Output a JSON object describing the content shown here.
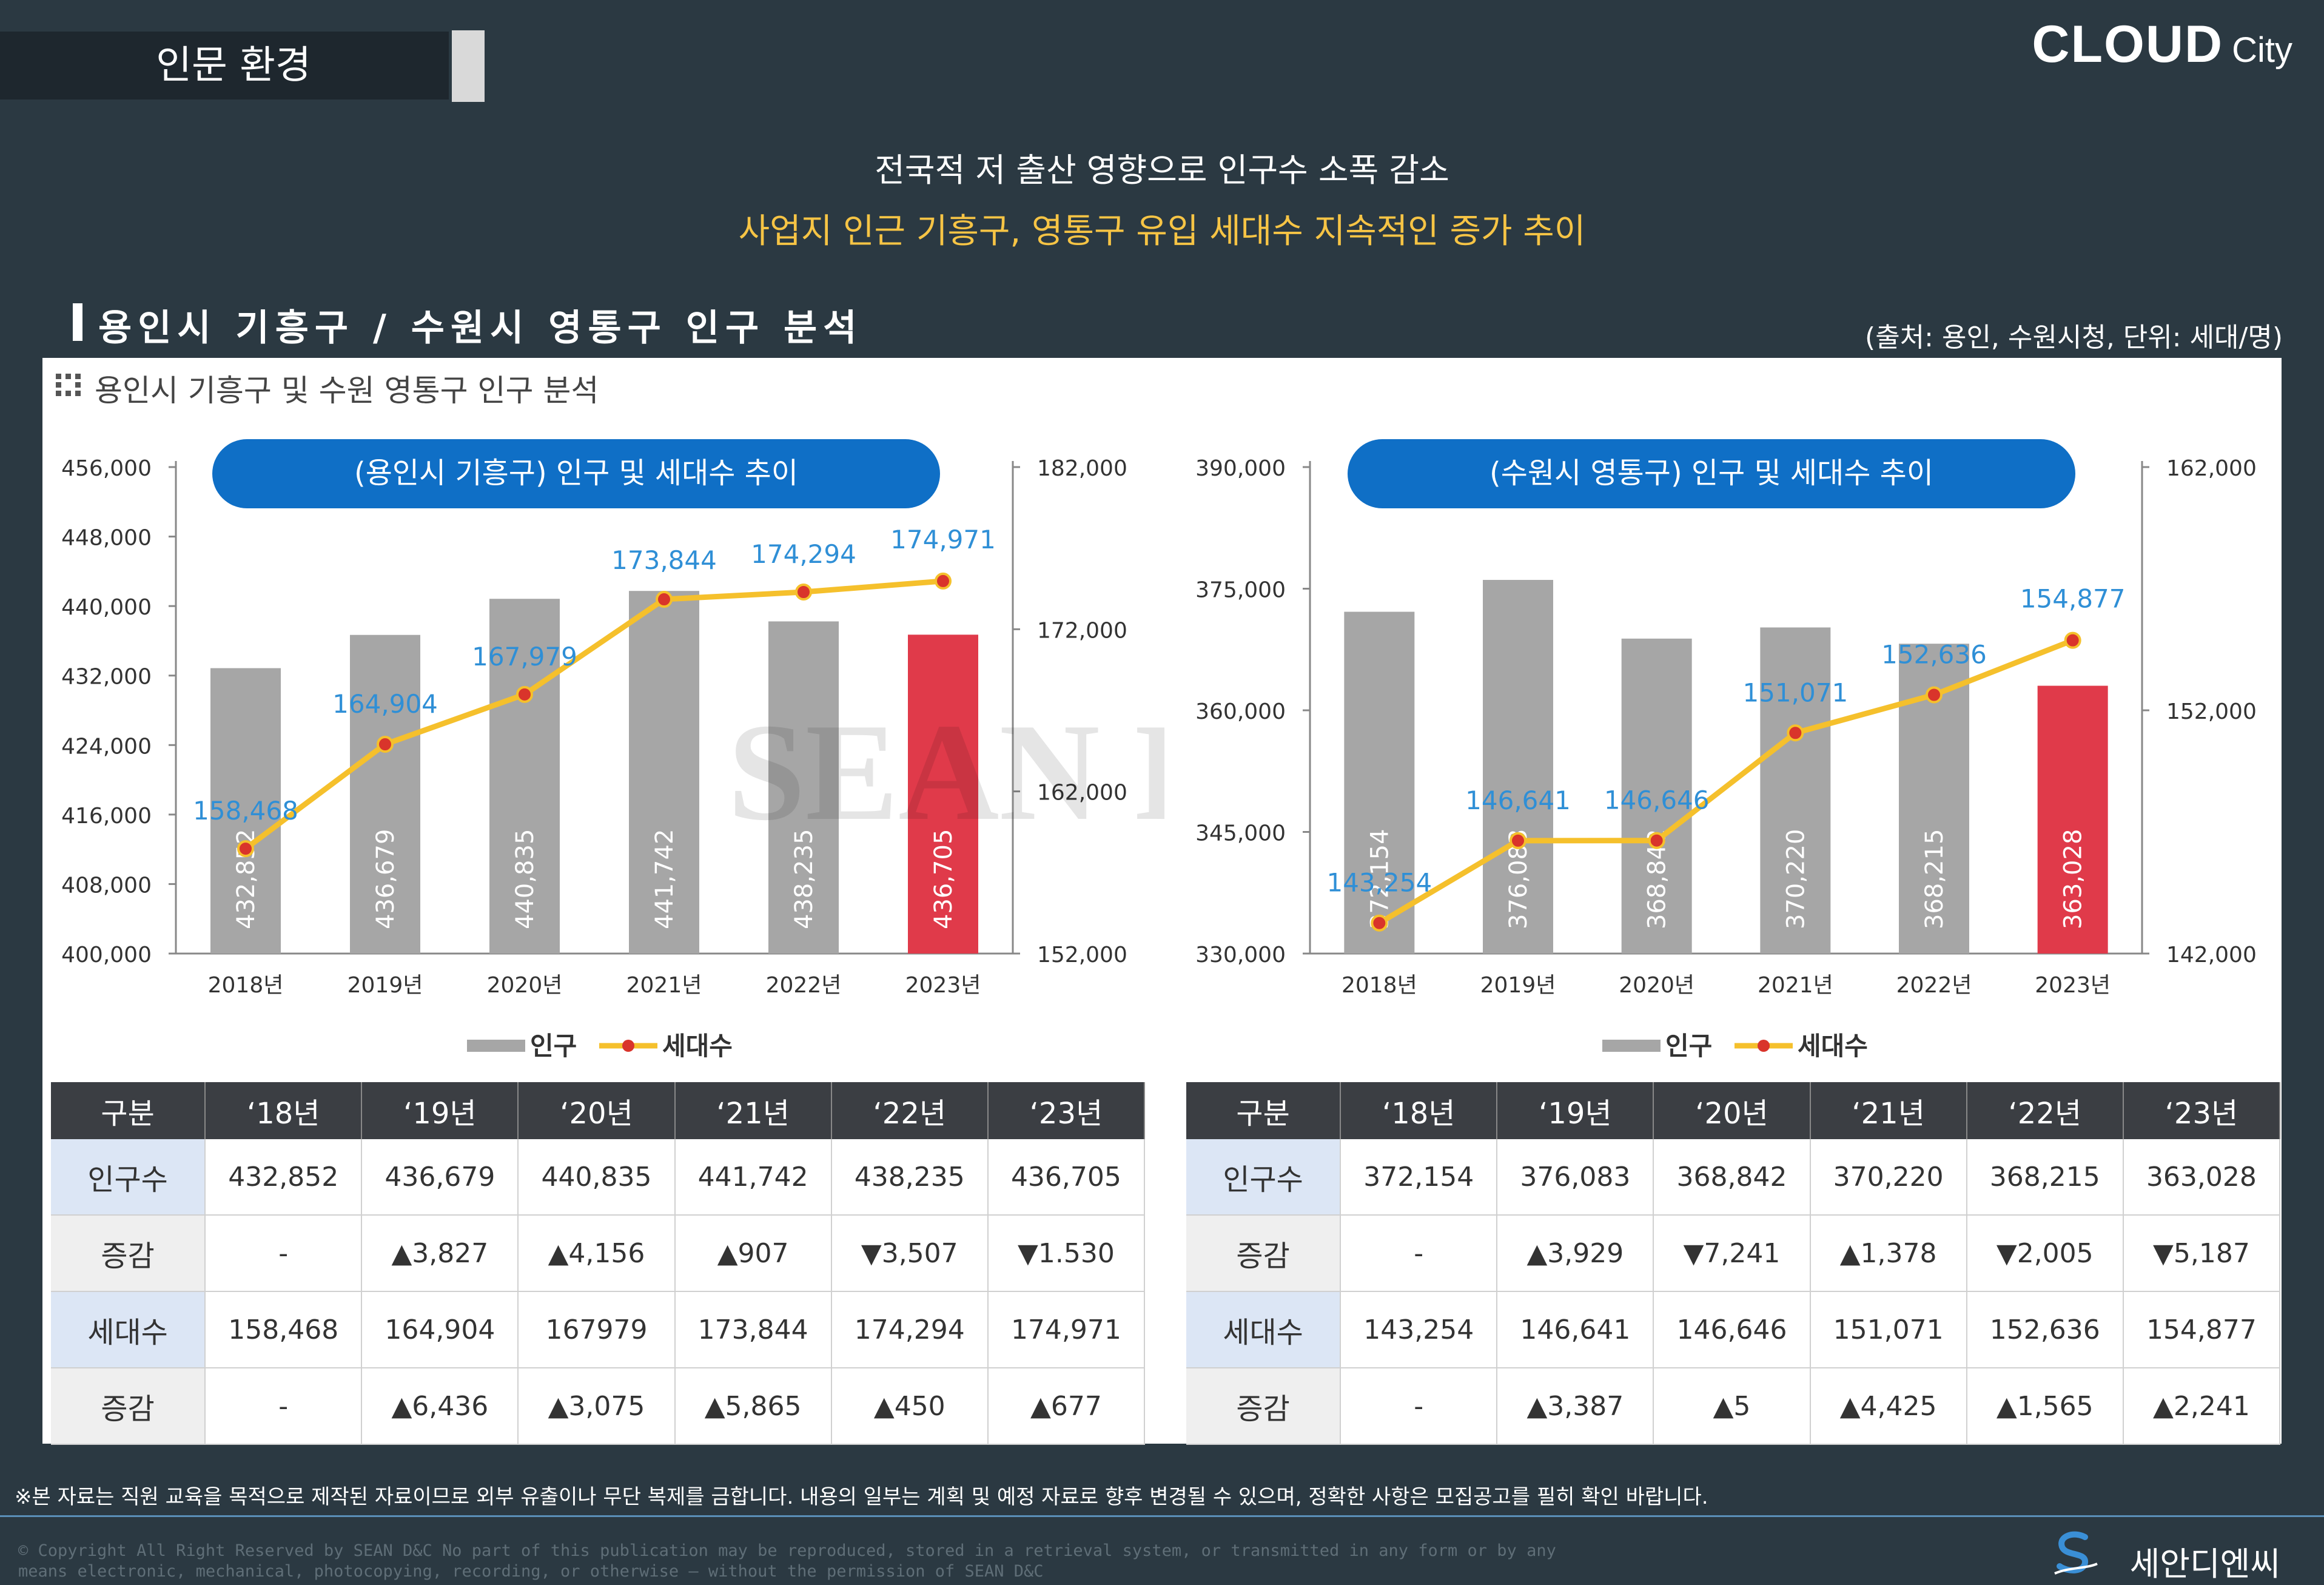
{
  "header": {
    "section_tab": "인문 환경",
    "brand_main": "CLOUD",
    "brand_sub": "City",
    "headline_1": "전국적 저 출산 영향으로 인구수 소폭 감소",
    "headline_2": "사업지 인근 기흥구, 영통구 유입 세대수 지속적인 증가 추이",
    "analysis_title": "용인시 기흥구 / 수원시 영통구 인구 분석",
    "source_note": "(출처: 용인, 수원시청, 단위: 세대/명)"
  },
  "panel": {
    "title": "용인시 기흥구 및 수원 영통구 인구 분석"
  },
  "watermark": "SEAN D&C",
  "colors": {
    "bar": "#a6a6a6",
    "bar_highlight": "#e03a4a",
    "line": "#f5c02c",
    "marker": "#d9342b",
    "label": "#2f8fd6",
    "pill": "#0f6fc6",
    "table_header": "#3b3e43",
    "up": "#d93a3a",
    "down": "#1a4fbd"
  },
  "chart_data": [
    {
      "type": "bar",
      "title": "(용인시 기흥구) 인구 및 세대수 추이",
      "categories": [
        "2018년",
        "2019년",
        "2020년",
        "2021년",
        "2022년",
        "2023년"
      ],
      "series": [
        {
          "name": "인구",
          "type": "bar",
          "axis": "left",
          "values": [
            432852,
            436679,
            440835,
            441742,
            438235,
            436705
          ],
          "labels": [
            "432,852",
            "436,679",
            "440,835",
            "441,742",
            "438,235",
            "436,705"
          ],
          "highlight_index": 5
        },
        {
          "name": "세대수",
          "type": "line",
          "axis": "right",
          "values": [
            158468,
            164904,
            167979,
            173844,
            174294,
            174971
          ],
          "labels": [
            "158,468",
            "164,904",
            "167,979",
            "173,844",
            "174,294",
            "174,971"
          ]
        }
      ],
      "y_left": {
        "min": 400000,
        "max": 456000,
        "ticks": [
          "456,000",
          "448,000",
          "440,000",
          "432,000",
          "424,000",
          "416,000",
          "408,000",
          "400,000"
        ]
      },
      "y_right": {
        "min": 152000,
        "max": 182000,
        "ticks": [
          "182,000",
          "172,000",
          "162,000",
          "152,000"
        ]
      },
      "legend": [
        "인구",
        "세대수"
      ]
    },
    {
      "type": "bar",
      "title": "(수원시 영통구) 인구 및 세대수 추이",
      "categories": [
        "2018년",
        "2019년",
        "2020년",
        "2021년",
        "2022년",
        "2023년"
      ],
      "series": [
        {
          "name": "인구",
          "type": "bar",
          "axis": "left",
          "values": [
            372154,
            376083,
            368842,
            370220,
            368215,
            363028
          ],
          "labels": [
            "372,154",
            "376,083",
            "368,842",
            "370,220",
            "368,215",
            "363,028"
          ],
          "highlight_index": 5
        },
        {
          "name": "세대수",
          "type": "line",
          "axis": "right",
          "values": [
            143254,
            146641,
            146646,
            151071,
            152636,
            154877
          ],
          "labels": [
            "143,254",
            "146,641",
            "146,646",
            "151,071",
            "152,636",
            "154,877"
          ]
        }
      ],
      "y_left": {
        "min": 330000,
        "max": 390000,
        "ticks": [
          "390,000",
          "375,000",
          "360,000",
          "345,000",
          "330,000"
        ]
      },
      "y_right": {
        "min": 142000,
        "max": 162000,
        "ticks": [
          "162,000",
          "152,000",
          "142,000"
        ]
      },
      "legend": [
        "인구",
        "세대수"
      ]
    }
  ],
  "tables": [
    {
      "headers": [
        "구분",
        "‘18년",
        "‘19년",
        "‘20년",
        "‘21년",
        "‘22년",
        "‘23년"
      ],
      "rows": [
        {
          "label": "인구수",
          "bg": "blue",
          "cells": [
            {
              "text": "432,852"
            },
            {
              "text": "436,679"
            },
            {
              "text": "440,835"
            },
            {
              "text": "441,742"
            },
            {
              "text": "438,235"
            },
            {
              "text": "436,705"
            }
          ]
        },
        {
          "label": "증감",
          "bg": "gray",
          "cells": [
            {
              "text": "-",
              "cls": "dash"
            },
            {
              "text": "▲3,827",
              "cls": "up"
            },
            {
              "text": "▲4,156",
              "cls": "up"
            },
            {
              "text": "▲907",
              "cls": "up"
            },
            {
              "text": "▼3,507",
              "cls": "down"
            },
            {
              "text": "▼1.530",
              "cls": "down"
            }
          ]
        },
        {
          "label": "세대수",
          "bg": "blue",
          "cells": [
            {
              "text": "158,468"
            },
            {
              "text": "164,904"
            },
            {
              "text": "167979"
            },
            {
              "text": "173,844"
            },
            {
              "text": "174,294"
            },
            {
              "text": "174,971"
            }
          ]
        },
        {
          "label": "증감",
          "bg": "gray",
          "cells": [
            {
              "text": "-",
              "cls": "dash"
            },
            {
              "text": "▲6,436",
              "cls": "up"
            },
            {
              "text": "▲3,075",
              "cls": "up"
            },
            {
              "text": "▲5,865",
              "cls": "up"
            },
            {
              "text": "▲450",
              "cls": "up"
            },
            {
              "text": "▲677",
              "cls": "up"
            }
          ]
        }
      ]
    },
    {
      "headers": [
        "구분",
        "‘18년",
        "‘19년",
        "‘20년",
        "‘21년",
        "‘22년",
        "‘23년"
      ],
      "rows": [
        {
          "label": "인구수",
          "bg": "blue",
          "cells": [
            {
              "text": "372,154"
            },
            {
              "text": "376,083"
            },
            {
              "text": "368,842"
            },
            {
              "text": "370,220"
            },
            {
              "text": "368,215"
            },
            {
              "text": "363,028"
            }
          ]
        },
        {
          "label": "증감",
          "bg": "gray",
          "cells": [
            {
              "text": "-",
              "cls": "dash"
            },
            {
              "text": "▲3,929",
              "cls": "up"
            },
            {
              "text": "▼7,241",
              "cls": "down"
            },
            {
              "text": "▲1,378",
              "cls": "up"
            },
            {
              "text": "▼2,005",
              "cls": "down"
            },
            {
              "text": "▼5,187",
              "cls": "down"
            }
          ]
        },
        {
          "label": "세대수",
          "bg": "blue",
          "cells": [
            {
              "text": "143,254"
            },
            {
              "text": "146,641"
            },
            {
              "text": "146,646"
            },
            {
              "text": "151,071"
            },
            {
              "text": "152,636"
            },
            {
              "text": "154,877"
            }
          ]
        },
        {
          "label": "증감",
          "bg": "gray",
          "cells": [
            {
              "text": "-",
              "cls": "dash"
            },
            {
              "text": "▲3,387",
              "cls": "up"
            },
            {
              "text": "▲5",
              "cls": "up"
            },
            {
              "text": "▲4,425",
              "cls": "up"
            },
            {
              "text": "▲1,565",
              "cls": "up"
            },
            {
              "text": "▲2,241",
              "cls": "up"
            }
          ]
        }
      ]
    }
  ],
  "footer": {
    "disclaimer": "※본 자료는 직원 교육을 목적으로 제작된 자료이므로 외부 유출이나 무단 복제를 금합니다. 내용의 일부는 계획 및 예정 자료로 향후 변경될 수 있으며, 정확한 사항은 모집공고를 필히 확인 바랍니다.",
    "copyright_1": "© Copyright All Right Reserved by SEAN D&C  No part of this publication may be reproduced, stored in a retrieval system, or transmitted in any form or by any",
    "copyright_2": "means electronic, mechanical, photocopying, recording, or otherwise — without the permission of SEAN D&C",
    "brand": "세안디엔씨"
  }
}
